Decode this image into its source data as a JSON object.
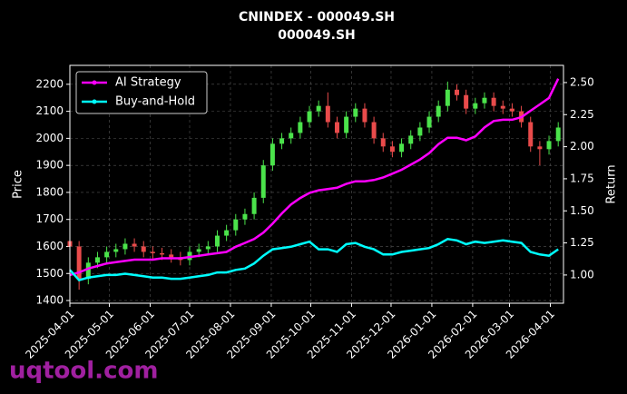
{
  "chart_data": {
    "type": "candlestick",
    "title": "CNINDEX - 000049.SH",
    "subtitle": "000049.SH",
    "y_label": "Price",
    "y2_label": "Return",
    "watermark": "uqtool.com",
    "x": [
      "2025-04-01",
      "2025-04-08",
      "2025-04-15",
      "2025-04-22",
      "2025-04-29",
      "2025-05-06",
      "2025-05-13",
      "2025-05-20",
      "2025-05-27",
      "2025-06-03",
      "2025-06-10",
      "2025-06-17",
      "2025-06-24",
      "2025-07-01",
      "2025-07-08",
      "2025-07-15",
      "2025-07-22",
      "2025-07-29",
      "2025-08-05",
      "2025-08-12",
      "2025-08-19",
      "2025-08-26",
      "2025-09-02",
      "2025-09-09",
      "2025-09-16",
      "2025-09-23",
      "2025-09-30",
      "2025-10-07",
      "2025-10-14",
      "2025-10-21",
      "2025-10-28",
      "2025-11-04",
      "2025-11-11",
      "2025-11-18",
      "2025-11-25",
      "2025-12-02",
      "2025-12-09",
      "2025-12-16",
      "2025-12-23",
      "2025-12-30",
      "2026-01-06",
      "2026-01-13",
      "2026-01-20",
      "2026-01-27",
      "2026-02-03",
      "2026-02-10",
      "2026-02-17",
      "2026-02-24",
      "2026-03-03",
      "2026-03-10",
      "2026-03-17",
      "2026-03-24",
      "2026-03-31",
      "2026-04-07"
    ],
    "open": [
      1620,
      1600,
      1480,
      1540,
      1560,
      1580,
      1590,
      1610,
      1600,
      1580,
      1575,
      1570,
      1560,
      1550,
      1580,
      1590,
      1600,
      1640,
      1660,
      1700,
      1720,
      1780,
      1900,
      1980,
      2000,
      2020,
      2060,
      2100,
      2120,
      2060,
      2020,
      2080,
      2110,
      2060,
      2000,
      1970,
      1950,
      1980,
      2010,
      2040,
      2080,
      2120,
      2180,
      2160,
      2110,
      2130,
      2150,
      2120,
      2110,
      2100,
      2060,
      1970,
      1960,
      1990
    ],
    "high": [
      1640,
      1620,
      1560,
      1580,
      1600,
      1610,
      1630,
      1630,
      1620,
      1600,
      1595,
      1590,
      1580,
      1600,
      1610,
      1620,
      1660,
      1680,
      1720,
      1740,
      1800,
      1920,
      2000,
      2020,
      2040,
      2080,
      2120,
      2140,
      2170,
      2080,
      2100,
      2130,
      2130,
      2080,
      2020,
      1990,
      2000,
      2030,
      2060,
      2100,
      2140,
      2210,
      2200,
      2180,
      2150,
      2170,
      2170,
      2140,
      2130,
      2120,
      2080,
      1990,
      2010,
      2060
    ],
    "low": [
      1580,
      1440,
      1460,
      1520,
      1540,
      1560,
      1570,
      1580,
      1560,
      1555,
      1550,
      1540,
      1530,
      1530,
      1560,
      1570,
      1580,
      1620,
      1640,
      1680,
      1700,
      1760,
      1880,
      1960,
      1980,
      2000,
      2040,
      2080,
      2040,
      2000,
      2000,
      2060,
      2040,
      1980,
      1950,
      1930,
      1930,
      1960,
      1990,
      2020,
      2060,
      2100,
      2140,
      2090,
      2090,
      2110,
      2100,
      2090,
      2080,
      2040,
      1950,
      1900,
      1940,
      1970
    ],
    "close": [
      1600,
      1480,
      1540,
      1560,
      1580,
      1590,
      1610,
      1600,
      1580,
      1575,
      1570,
      1560,
      1550,
      1580,
      1590,
      1600,
      1640,
      1660,
      1700,
      1720,
      1780,
      1900,
      1980,
      2000,
      2020,
      2060,
      2100,
      2120,
      2060,
      2020,
      2080,
      2110,
      2060,
      2000,
      1970,
      1950,
      1980,
      2010,
      2040,
      2080,
      2120,
      2180,
      2160,
      2110,
      2130,
      2150,
      2120,
      2110,
      2100,
      2060,
      1970,
      1960,
      1990,
      2040
    ],
    "up_color": "#4be34b",
    "down_color": "#e94b4b",
    "series": [
      {
        "name": "AI Strategy",
        "color": "#ff00ff",
        "axis": "y2",
        "values": [
          1.0,
          1.02,
          1.05,
          1.07,
          1.09,
          1.1,
          1.11,
          1.12,
          1.12,
          1.12,
          1.13,
          1.13,
          1.13,
          1.14,
          1.15,
          1.16,
          1.17,
          1.18,
          1.22,
          1.25,
          1.28,
          1.33,
          1.4,
          1.48,
          1.55,
          1.6,
          1.64,
          1.66,
          1.67,
          1.68,
          1.71,
          1.73,
          1.73,
          1.74,
          1.76,
          1.79,
          1.82,
          1.86,
          1.9,
          1.95,
          2.02,
          2.07,
          2.07,
          2.05,
          2.08,
          2.15,
          2.2,
          2.21,
          2.21,
          2.23,
          2.28,
          2.33,
          2.38,
          2.53
        ]
      },
      {
        "name": "Buy-and-Hold",
        "color": "#00ffff",
        "axis": "y2",
        "values": [
          1.04,
          0.96,
          0.98,
          0.99,
          1.0,
          1.0,
          1.01,
          1.0,
          0.99,
          0.98,
          0.98,
          0.97,
          0.97,
          0.98,
          0.99,
          1.0,
          1.02,
          1.02,
          1.04,
          1.05,
          1.09,
          1.15,
          1.2,
          1.21,
          1.22,
          1.24,
          1.26,
          1.2,
          1.2,
          1.18,
          1.24,
          1.25,
          1.22,
          1.2,
          1.16,
          1.16,
          1.18,
          1.19,
          1.2,
          1.21,
          1.24,
          1.28,
          1.27,
          1.24,
          1.26,
          1.25,
          1.26,
          1.27,
          1.26,
          1.25,
          1.18,
          1.16,
          1.15,
          1.2
        ]
      }
    ],
    "xlim": [
      "2025-04-01",
      "2026-04-11"
    ],
    "xticks": [
      "2025-04-01",
      "2025-05-01",
      "2025-06-01",
      "2025-07-01",
      "2025-08-01",
      "2025-09-01",
      "2025-10-01",
      "2025-11-01",
      "2025-12-01",
      "2026-01-01",
      "2026-02-01",
      "2026-03-01",
      "2026-04-01"
    ],
    "ylim": [
      1390,
      2270
    ],
    "yticks": [
      1400,
      1500,
      1600,
      1700,
      1800,
      1900,
      2000,
      2100,
      2200
    ],
    "y2lim": [
      0.78,
      2.634
    ],
    "y2ticks": [
      {
        "value": 1,
        "label": "1.00"
      },
      1.25,
      {
        "value": 1.5,
        "label": "1.50"
      },
      1.75,
      {
        "value": 2,
        "label": "2.00"
      },
      2.25,
      {
        "value": 2.5,
        "label": "2.50"
      }
    ],
    "grid": true,
    "legend": "upper left"
  }
}
